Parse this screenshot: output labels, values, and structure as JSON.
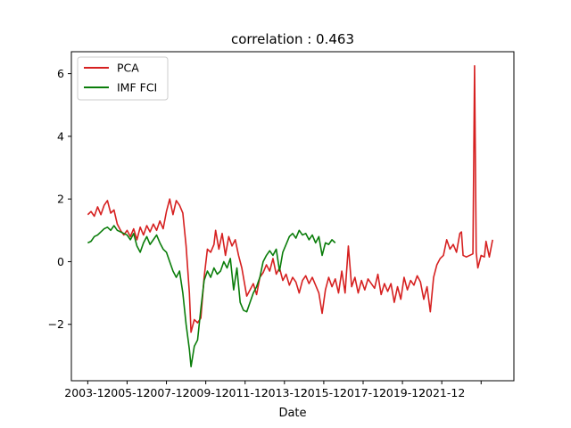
{
  "chart_data": {
    "type": "line",
    "title": "correlation : 0.463",
    "xlabel": "Date",
    "ylabel": "",
    "xlim": [
      "2003-02",
      "2025-08"
    ],
    "ylim": [
      -3.8,
      6.7
    ],
    "x_ticks": [
      "2003-12",
      "2005-12",
      "2007-12",
      "2009-12",
      "2011-12",
      "2013-12",
      "2015-12",
      "2017-12",
      "2019-12",
      "2021-12",
      "2023-12"
    ],
    "x_tick_labels": [
      "2003-12",
      "2005-12",
      "2007-12",
      "2009-12",
      "2011-12",
      "2013-12",
      "2015-12",
      "2017-12",
      "2019-12",
      "2021-12",
      ""
    ],
    "y_ticks": [
      -2,
      0,
      2,
      4,
      6
    ],
    "y_tick_labels": [
      "−2",
      "0",
      "2",
      "4",
      "6"
    ],
    "grid": false,
    "legend_position": "top-left",
    "series": [
      {
        "name": "PCA",
        "color": "#d62020",
        "points": [
          [
            "2003-12",
            1.5
          ],
          [
            "2004-02",
            1.6
          ],
          [
            "2004-04",
            1.45
          ],
          [
            "2004-06",
            1.75
          ],
          [
            "2004-08",
            1.5
          ],
          [
            "2004-10",
            1.8
          ],
          [
            "2004-12",
            1.95
          ],
          [
            "2005-02",
            1.55
          ],
          [
            "2005-04",
            1.65
          ],
          [
            "2005-06",
            1.2
          ],
          [
            "2005-08",
            1.0
          ],
          [
            "2005-10",
            0.85
          ],
          [
            "2005-12",
            1.0
          ],
          [
            "2006-02",
            0.8
          ],
          [
            "2006-04",
            1.05
          ],
          [
            "2006-06",
            0.7
          ],
          [
            "2006-08",
            1.1
          ],
          [
            "2006-10",
            0.85
          ],
          [
            "2006-12",
            1.15
          ],
          [
            "2007-02",
            0.95
          ],
          [
            "2007-04",
            1.2
          ],
          [
            "2007-06",
            1.0
          ],
          [
            "2007-08",
            1.3
          ],
          [
            "2007-10",
            1.05
          ],
          [
            "2007-12",
            1.6
          ],
          [
            "2008-02",
            2.0
          ],
          [
            "2008-04",
            1.5
          ],
          [
            "2008-06",
            1.95
          ],
          [
            "2008-08",
            1.8
          ],
          [
            "2008-10",
            1.55
          ],
          [
            "2008-12",
            0.5
          ],
          [
            "2009-02",
            -1.0
          ],
          [
            "2009-03",
            -2.25
          ],
          [
            "2009-05",
            -1.85
          ],
          [
            "2009-07",
            -1.95
          ],
          [
            "2009-09",
            -1.8
          ],
          [
            "2009-11",
            -0.5
          ],
          [
            "2010-01",
            0.4
          ],
          [
            "2010-03",
            0.3
          ],
          [
            "2010-05",
            0.55
          ],
          [
            "2010-06",
            1.0
          ],
          [
            "2010-08",
            0.4
          ],
          [
            "2010-10",
            0.9
          ],
          [
            "2010-12",
            0.2
          ],
          [
            "2011-02",
            0.8
          ],
          [
            "2011-04",
            0.5
          ],
          [
            "2011-06",
            0.7
          ],
          [
            "2011-08",
            0.2
          ],
          [
            "2011-10",
            -0.2
          ],
          [
            "2012-01",
            -1.1
          ],
          [
            "2012-03",
            -0.9
          ],
          [
            "2012-05",
            -0.7
          ],
          [
            "2012-07",
            -1.05
          ],
          [
            "2012-09",
            -0.5
          ],
          [
            "2012-11",
            -0.35
          ],
          [
            "2013-01",
            -0.1
          ],
          [
            "2013-03",
            -0.3
          ],
          [
            "2013-05",
            0.1
          ],
          [
            "2013-07",
            -0.4
          ],
          [
            "2013-09",
            -0.2
          ],
          [
            "2013-11",
            -0.6
          ],
          [
            "2014-01",
            -0.4
          ],
          [
            "2014-03",
            -0.75
          ],
          [
            "2014-05",
            -0.5
          ],
          [
            "2014-07",
            -0.65
          ],
          [
            "2014-09",
            -1.0
          ],
          [
            "2014-11",
            -0.6
          ],
          [
            "2015-01",
            -0.45
          ],
          [
            "2015-03",
            -0.7
          ],
          [
            "2015-05",
            -0.5
          ],
          [
            "2015-07",
            -0.75
          ],
          [
            "2015-09",
            -1.0
          ],
          [
            "2015-11",
            -1.65
          ],
          [
            "2016-01",
            -0.9
          ],
          [
            "2016-03",
            -0.5
          ],
          [
            "2016-05",
            -0.8
          ],
          [
            "2016-07",
            -0.55
          ],
          [
            "2016-09",
            -1.0
          ],
          [
            "2016-11",
            -0.3
          ],
          [
            "2017-01",
            -1.0
          ],
          [
            "2017-03",
            0.5
          ],
          [
            "2017-05",
            -0.8
          ],
          [
            "2017-07",
            -0.5
          ],
          [
            "2017-09",
            -1.0
          ],
          [
            "2017-11",
            -0.6
          ],
          [
            "2018-01",
            -0.9
          ],
          [
            "2018-03",
            -0.55
          ],
          [
            "2018-05",
            -0.7
          ],
          [
            "2018-07",
            -0.85
          ],
          [
            "2018-09",
            -0.4
          ],
          [
            "2018-11",
            -1.05
          ],
          [
            "2019-01",
            -0.7
          ],
          [
            "2019-03",
            -0.95
          ],
          [
            "2019-05",
            -0.7
          ],
          [
            "2019-07",
            -1.3
          ],
          [
            "2019-09",
            -0.8
          ],
          [
            "2019-11",
            -1.2
          ],
          [
            "2020-01",
            -0.5
          ],
          [
            "2020-03",
            -0.9
          ],
          [
            "2020-05",
            -0.6
          ],
          [
            "2020-07",
            -0.75
          ],
          [
            "2020-09",
            -0.45
          ],
          [
            "2020-11",
            -0.65
          ],
          [
            "2021-01",
            -1.2
          ],
          [
            "2021-03",
            -0.8
          ],
          [
            "2021-05",
            -1.6
          ],
          [
            "2021-07",
            -0.5
          ],
          [
            "2021-09",
            -0.1
          ],
          [
            "2021-11",
            0.1
          ],
          [
            "2022-01",
            0.2
          ],
          [
            "2022-03",
            0.7
          ],
          [
            "2022-05",
            0.4
          ],
          [
            "2022-07",
            0.55
          ],
          [
            "2022-09",
            0.3
          ],
          [
            "2022-11",
            0.9
          ],
          [
            "2022-12",
            0.95
          ],
          [
            "2023-01",
            0.2
          ],
          [
            "2023-03",
            0.15
          ],
          [
            "2023-05",
            0.2
          ],
          [
            "2023-07",
            0.25
          ],
          [
            "2023-08",
            6.25
          ],
          [
            "2023-09",
            0.3
          ],
          [
            "2023-10",
            -0.2
          ],
          [
            "2023-12",
            0.2
          ],
          [
            "2024-02",
            0.15
          ],
          [
            "2024-03",
            0.65
          ],
          [
            "2024-05",
            0.15
          ],
          [
            "2024-07",
            0.7
          ]
        ]
      },
      {
        "name": "IMF FCI",
        "color": "#0a7d0a",
        "points": [
          [
            "2003-12",
            0.6
          ],
          [
            "2004-02",
            0.65
          ],
          [
            "2004-04",
            0.8
          ],
          [
            "2004-06",
            0.85
          ],
          [
            "2004-08",
            0.95
          ],
          [
            "2004-10",
            1.05
          ],
          [
            "2004-12",
            1.1
          ],
          [
            "2005-02",
            1.0
          ],
          [
            "2005-04",
            1.15
          ],
          [
            "2005-06",
            1.0
          ],
          [
            "2005-08",
            0.95
          ],
          [
            "2005-10",
            0.9
          ],
          [
            "2005-12",
            0.85
          ],
          [
            "2006-02",
            0.7
          ],
          [
            "2006-04",
            0.9
          ],
          [
            "2006-06",
            0.5
          ],
          [
            "2006-08",
            0.3
          ],
          [
            "2006-10",
            0.6
          ],
          [
            "2006-12",
            0.8
          ],
          [
            "2007-02",
            0.55
          ],
          [
            "2007-04",
            0.7
          ],
          [
            "2007-06",
            0.85
          ],
          [
            "2007-08",
            0.6
          ],
          [
            "2007-10",
            0.4
          ],
          [
            "2007-12",
            0.3
          ],
          [
            "2008-02",
            0.0
          ],
          [
            "2008-04",
            -0.3
          ],
          [
            "2008-06",
            -0.5
          ],
          [
            "2008-08",
            -0.3
          ],
          [
            "2008-10",
            -1.0
          ],
          [
            "2008-12",
            -2.0
          ],
          [
            "2009-02",
            -2.8
          ],
          [
            "2009-03",
            -3.35
          ],
          [
            "2009-05",
            -2.7
          ],
          [
            "2009-07",
            -2.5
          ],
          [
            "2009-09",
            -1.5
          ],
          [
            "2009-11",
            -0.6
          ],
          [
            "2010-01",
            -0.3
          ],
          [
            "2010-03",
            -0.5
          ],
          [
            "2010-05",
            -0.2
          ],
          [
            "2010-07",
            -0.4
          ],
          [
            "2010-09",
            -0.3
          ],
          [
            "2010-11",
            0.0
          ],
          [
            "2011-01",
            -0.2
          ],
          [
            "2011-03",
            0.1
          ],
          [
            "2011-05",
            -0.9
          ],
          [
            "2011-07",
            -0.2
          ],
          [
            "2011-09",
            -1.3
          ],
          [
            "2011-11",
            -1.55
          ],
          [
            "2012-01",
            -1.6
          ],
          [
            "2012-03",
            -1.3
          ],
          [
            "2012-05",
            -1.0
          ],
          [
            "2012-07",
            -0.8
          ],
          [
            "2012-09",
            -0.5
          ],
          [
            "2012-11",
            0.0
          ],
          [
            "2013-01",
            0.2
          ],
          [
            "2013-03",
            0.35
          ],
          [
            "2013-05",
            0.2
          ],
          [
            "2013-07",
            0.4
          ],
          [
            "2013-09",
            -0.3
          ],
          [
            "2013-11",
            0.3
          ],
          [
            "2014-01",
            0.55
          ],
          [
            "2014-03",
            0.8
          ],
          [
            "2014-05",
            0.9
          ],
          [
            "2014-07",
            0.75
          ],
          [
            "2014-09",
            1.0
          ],
          [
            "2014-11",
            0.85
          ],
          [
            "2015-01",
            0.9
          ],
          [
            "2015-03",
            0.7
          ],
          [
            "2015-05",
            0.85
          ],
          [
            "2015-07",
            0.6
          ],
          [
            "2015-09",
            0.8
          ],
          [
            "2015-11",
            0.2
          ],
          [
            "2016-01",
            0.6
          ],
          [
            "2016-03",
            0.55
          ],
          [
            "2016-05",
            0.7
          ],
          [
            "2016-07",
            0.6
          ]
        ]
      }
    ]
  }
}
